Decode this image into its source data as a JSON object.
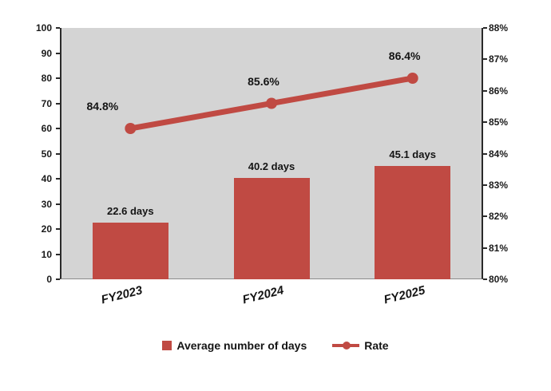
{
  "chart_data": {
    "type": "combo",
    "title": "",
    "categories": [
      "FY2023",
      "FY2024",
      "FY2025"
    ],
    "series": [
      {
        "name": "Average number of days",
        "type": "bar",
        "axis": "left",
        "color": "#c04a43",
        "values": [
          22.6,
          40.2,
          45.1
        ],
        "data_labels": [
          "22.6 days",
          "40.2 days",
          "45.1 days"
        ]
      },
      {
        "name": "Rate",
        "type": "line",
        "axis": "right",
        "color": "#c04a43",
        "values": [
          84.8,
          85.6,
          86.4
        ],
        "data_labels": [
          "84.8%",
          "85.6%",
          "86.4%"
        ]
      }
    ],
    "left_axis": {
      "min": 0,
      "max": 100,
      "step": 10,
      "tick_labels": [
        "0",
        "10",
        "20",
        "30",
        "40",
        "50",
        "60",
        "70",
        "80",
        "90",
        "100"
      ]
    },
    "right_axis": {
      "min": 80,
      "max": 88,
      "step": 1,
      "tick_labels": [
        "80%",
        "81%",
        "82%",
        "83%",
        "84%",
        "85%",
        "86%",
        "87%",
        "88%"
      ]
    },
    "grid": false,
    "legend_position": "bottom",
    "colors": {
      "accent": "#c04a43",
      "plot_background": "#d4d4d4",
      "text": "#141414",
      "page_background": "#ffffff"
    }
  }
}
